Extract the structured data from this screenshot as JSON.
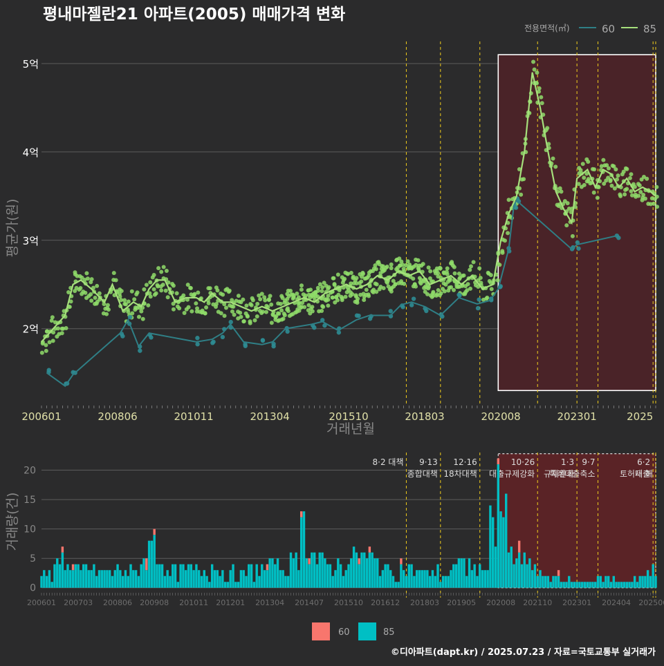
{
  "title": "평내마젤란21 아파트(2005) 매매가격 변화",
  "footer": "©디아파트(dapt.kr) / 2025.07.23 / 자료=국토교통부 실거래가",
  "colors": {
    "background": "#2b2b2c",
    "series_60_line": "#2f7f86",
    "series_60_point": "#2e8c93",
    "series_85": "#a6e07c",
    "series_85_point": "#8fdc6a",
    "bar_60": "#f8766d",
    "bar_85": "#00bfc4",
    "policy_line": "#e3c21d",
    "highlight_fill": "#4a2328",
    "highlight_fill_lower": "#5a2326"
  },
  "chart_data": [
    {
      "type": "line",
      "name": "price",
      "ylabel": "평균가(원)",
      "xlabel": "거래년월",
      "ytick_labels": [
        "2억",
        "3억",
        "4억",
        "5억"
      ],
      "yticks": [
        2.0,
        3.0,
        4.0,
        5.0
      ],
      "ylim": [
        1.13,
        5.25
      ],
      "xtick_labels": [
        "200601",
        "200806",
        "201011",
        "201304",
        "201510",
        "201803",
        "202008",
        "202301",
        "2025"
      ],
      "legend_title": "전용면적(㎡)",
      "legend_position": "top-right",
      "series": [
        {
          "name": "60",
          "x": [
            "2006-03",
            "2006-10",
            "2007-01",
            "2008-07",
            "2008-10",
            "2009-02",
            "2009-06",
            "2010-12",
            "2011-06",
            "2011-10",
            "2012-01",
            "2012-06",
            "2013-01",
            "2013-05",
            "2013-10",
            "2014-08",
            "2014-12",
            "2015-06",
            "2016-01",
            "2016-06",
            "2017-02",
            "2017-06",
            "2017-10",
            "2018-03",
            "2018-09",
            "2019-04",
            "2019-11",
            "2020-04",
            "2020-07",
            "2020-11",
            "2021-01",
            "2021-02",
            "2022-11",
            "2023-01",
            "2024-04"
          ],
          "y": [
            1.5,
            1.35,
            1.48,
            1.95,
            2.1,
            1.8,
            1.95,
            1.85,
            1.88,
            1.95,
            2.05,
            1.85,
            1.82,
            1.85,
            2.0,
            2.05,
            2.08,
            1.98,
            2.1,
            2.15,
            2.15,
            2.27,
            2.3,
            2.25,
            2.15,
            2.35,
            2.28,
            2.32,
            2.45,
            2.9,
            3.4,
            3.45,
            2.9,
            2.95,
            3.05
          ]
        },
        {
          "name": "85",
          "x": [
            "2006-01",
            "2006-04",
            "2006-07",
            "2006-10",
            "2007-01",
            "2007-04",
            "2007-08",
            "2008-01",
            "2008-04",
            "2008-08",
            "2008-12",
            "2009-03",
            "2009-06",
            "2009-09",
            "2009-12",
            "2010-04",
            "2010-08",
            "2010-12",
            "2011-03",
            "2011-06",
            "2011-10",
            "2012-01",
            "2012-05",
            "2012-09",
            "2013-01",
            "2013-05",
            "2013-09",
            "2014-01",
            "2014-05",
            "2014-09",
            "2015-01",
            "2015-05",
            "2015-09",
            "2016-01",
            "2016-05",
            "2016-09",
            "2017-01",
            "2017-05",
            "2017-09",
            "2018-01",
            "2018-05",
            "2018-09",
            "2019-01",
            "2019-05",
            "2019-09",
            "2020-01",
            "2020-05",
            "2020-08",
            "2020-11",
            "2021-02",
            "2021-05",
            "2021-08",
            "2021-11",
            "2022-02",
            "2022-05",
            "2022-08",
            "2022-11",
            "2023-01",
            "2023-03",
            "2023-05",
            "2023-08",
            "2023-11",
            "2024-02",
            "2024-05",
            "2024-08",
            "2024-11",
            "2025-02",
            "2025-05",
            "2025-07"
          ],
          "y": [
            1.85,
            1.95,
            2.05,
            2.15,
            2.5,
            2.55,
            2.45,
            2.3,
            2.5,
            2.2,
            2.3,
            2.25,
            2.45,
            2.55,
            2.55,
            2.3,
            2.35,
            2.35,
            2.3,
            2.4,
            2.3,
            2.3,
            2.25,
            2.2,
            2.25,
            2.2,
            2.25,
            2.3,
            2.35,
            2.3,
            2.4,
            2.45,
            2.5,
            2.45,
            2.5,
            2.6,
            2.55,
            2.65,
            2.6,
            2.65,
            2.5,
            2.55,
            2.6,
            2.5,
            2.6,
            2.45,
            2.5,
            3.0,
            3.3,
            3.5,
            4.0,
            4.9,
            4.5,
            4.0,
            3.55,
            3.35,
            3.2,
            3.7,
            3.75,
            3.8,
            3.6,
            3.8,
            3.75,
            3.6,
            3.7,
            3.55,
            3.6,
            3.55,
            3.5
          ]
        }
      ]
    },
    {
      "type": "bar",
      "name": "volume",
      "ylabel": "거래량(건)",
      "yticks": [
        0,
        5,
        10,
        15,
        20
      ],
      "ylim": [
        -0.5,
        23
      ],
      "xtick_labels": [
        "200601",
        "200703",
        "200806",
        "200908",
        "201011",
        "201201",
        "201304",
        "201407",
        "201510",
        "201612",
        "201803",
        "201905",
        "202008",
        "202110",
        "202301",
        "202404",
        "202506"
      ],
      "legend": [
        "60",
        "85"
      ],
      "legend_position": "bottom",
      "series": [
        {
          "name": "60",
          "x": [
            "2006-09",
            "2007-01",
            "2009-05",
            "2009-08",
            "2013-03",
            "2014-04",
            "2014-07",
            "2016-02",
            "2016-06",
            "2017-06",
            "2020-07",
            "2021-03",
            "2022-06"
          ],
          "values": [
            1,
            1,
            2,
            1,
            1,
            1,
            1,
            1,
            1,
            1,
            1,
            2,
            1
          ]
        },
        {
          "name": "85",
          "x": [
            "2006-01",
            "2006-06",
            "2006-09",
            "2007-01",
            "2007-06",
            "2008-01",
            "2008-06",
            "2009-01",
            "2009-06",
            "2009-08",
            "2010-01",
            "2010-06",
            "2011-01",
            "2011-06",
            "2012-01",
            "2012-06",
            "2013-01",
            "2013-06",
            "2014-01",
            "2014-05",
            "2014-09",
            "2015-01",
            "2015-06",
            "2016-01",
            "2016-06",
            "2017-01",
            "2017-06",
            "2018-01",
            "2018-06",
            "2019-01",
            "2019-06",
            "2020-01",
            "2020-07",
            "2021-01",
            "2021-03",
            "2022-01",
            "2022-06",
            "2023-01",
            "2023-06",
            "2024-01",
            "2024-06",
            "2025-01",
            "2025-06"
          ],
          "values": [
            2,
            4,
            6,
            3,
            4,
            3,
            4,
            3,
            8,
            9,
            3,
            4,
            3,
            4,
            3,
            3,
            4,
            4,
            5,
            13,
            6,
            5,
            5,
            6,
            6,
            4,
            4,
            3,
            3,
            3,
            5,
            3,
            21,
            4,
            6,
            2,
            2,
            1,
            1,
            2,
            1,
            2,
            4
          ]
        }
      ]
    }
  ],
  "policies": [
    {
      "date": "2017-08",
      "label1": "8·2 대책",
      "label2": ""
    },
    {
      "date": "2018-09",
      "label1": "9·13",
      "label2": "종합대책"
    },
    {
      "date": "2019-12",
      "label1": "12·16",
      "label2": "18차대책"
    },
    {
      "date": "2021-10",
      "label1": "10·26",
      "label2": "대출규제강화"
    },
    {
      "date": "2023-01",
      "label1": "1·3",
      "label2": "규제완화"
    },
    {
      "date": "2023-09",
      "label1": "9·7",
      "label2": "특례대출축소"
    },
    {
      "date": "2025-06",
      "label1": "6·2",
      "label2": "대출"
    },
    {
      "date": "2025-07",
      "label1": "",
      "label2": "토허제 해"
    }
  ]
}
